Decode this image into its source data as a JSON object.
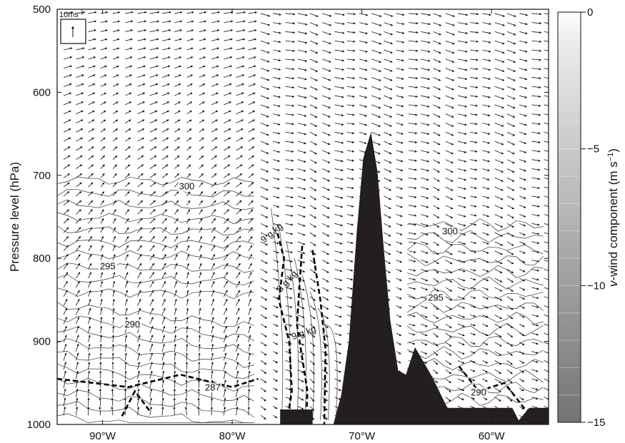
{
  "chart_data": {
    "type": "contour",
    "xlabel": "",
    "ylabel": "Pressure level (hPa)",
    "x_ticks": [
      {
        "value": -90,
        "label": "90°W"
      },
      {
        "value": -80,
        "label": "80°W"
      },
      {
        "value": -70,
        "label": "70°W"
      },
      {
        "value": -60,
        "label": "60°W"
      }
    ],
    "y_ticks": [
      500,
      600,
      700,
      800,
      900,
      1000
    ],
    "xlim": [
      -93.5,
      -55.6
    ],
    "ylim": [
      1000,
      500
    ],
    "y_inverted": true,
    "colorbar": {
      "label_italic": "v",
      "label_rest": "-wind component (m s",
      "label_sup": "−1",
      "label_close": ")",
      "range": [
        -15,
        0
      ],
      "ticks": [
        {
          "value": 0,
          "label": "0"
        },
        {
          "value": -5,
          "label": "−5"
        },
        {
          "value": -10,
          "label": "−10"
        },
        {
          "value": -15,
          "label": "−15"
        }
      ],
      "colormap": "grayscale dark(−15) to white(0)"
    },
    "theta_contour_labels": [
      {
        "text": "300",
        "lon": -83.5,
        "p": 717
      },
      {
        "text": "295",
        "lon": -89.6,
        "p": 813
      },
      {
        "text": "290",
        "lon": -87.7,
        "p": 883
      },
      {
        "text": "287",
        "lon": -81.5,
        "p": 959
      },
      {
        "text": "300",
        "lon": -63.2,
        "p": 771
      },
      {
        "text": "295",
        "lon": -64.3,
        "p": 851
      },
      {
        "text": "290",
        "lon": -61.0,
        "p": 965
      }
    ],
    "humidity_contour_labels": [
      {
        "text": "9 g kg",
        "lon": -76.8,
        "p": 772,
        "angle": -40
      },
      {
        "text": "8 g kg",
        "lon": -75.6,
        "p": 830,
        "angle": -48
      },
      {
        "text": "9 g kg",
        "lon": -74.4,
        "p": 893,
        "angle": -20
      }
    ],
    "wind_reference": {
      "label": "10ms",
      "sup": "-1"
    },
    "terrain_top_pressure": [
      [
        -76.3,
        1000
      ],
      [
        -76.3,
        982
      ],
      [
        -73.8,
        982
      ],
      [
        -73.8,
        1000
      ],
      [
        -72.2,
        1000
      ],
      [
        -71.6,
        965
      ],
      [
        -71.0,
        900
      ],
      [
        -70.4,
        770
      ],
      [
        -69.9,
        680
      ],
      [
        -69.3,
        648
      ],
      [
        -68.8,
        695
      ],
      [
        -68.3,
        790
      ],
      [
        -67.8,
        875
      ],
      [
        -67.2,
        935
      ],
      [
        -66.6,
        940
      ],
      [
        -65.9,
        907
      ],
      [
        -64.6,
        942
      ],
      [
        -63.4,
        980
      ],
      [
        -58.4,
        980
      ],
      [
        -57.9,
        995
      ],
      [
        -57.1,
        980
      ],
      [
        -55.6,
        980
      ],
      [
        -55.6,
        1000
      ]
    ],
    "colors": {
      "terrain": "#231f20",
      "background": "#ffffff",
      "contour": "#333333",
      "humidity": "#000000"
    }
  }
}
